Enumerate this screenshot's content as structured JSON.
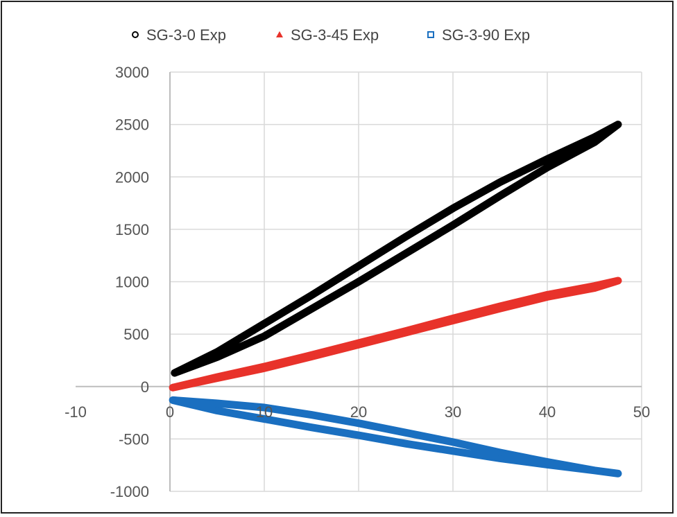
{
  "chart_data": {
    "type": "scatter",
    "title": "",
    "xlabel": "",
    "ylabel": "",
    "xlim": [
      -10,
      50
    ],
    "ylim": [
      -1000,
      3000
    ],
    "x_ticks": [
      -10,
      0,
      10,
      20,
      30,
      40,
      50
    ],
    "y_ticks": [
      -1000,
      -500,
      0,
      500,
      1000,
      1500,
      2000,
      2500,
      3000
    ],
    "grid": true,
    "legend_position": "top",
    "series": [
      {
        "name": "SG-3-0 Exp",
        "color": "#000000",
        "marker": "circle",
        "loading_points": [
          [
            0.5,
            130
          ],
          [
            5,
            330
          ],
          [
            10,
            600
          ],
          [
            15,
            870
          ],
          [
            20,
            1150
          ],
          [
            25,
            1430
          ],
          [
            30,
            1700
          ],
          [
            35,
            1950
          ],
          [
            40,
            2170
          ],
          [
            45,
            2380
          ],
          [
            47.5,
            2500
          ]
        ],
        "unloading_points": [
          [
            47.5,
            2500
          ],
          [
            45,
            2330
          ],
          [
            40,
            2090
          ],
          [
            35,
            1820
          ],
          [
            30,
            1540
          ],
          [
            25,
            1270
          ],
          [
            20,
            1000
          ],
          [
            15,
            740
          ],
          [
            10,
            480
          ],
          [
            5,
            280
          ],
          [
            0.5,
            130
          ]
        ]
      },
      {
        "name": "SG-3-45 Exp",
        "color": "#e8322a",
        "marker": "triangle",
        "loading_points": [
          [
            0.3,
            -10
          ],
          [
            5,
            90
          ],
          [
            10,
            190
          ],
          [
            15,
            300
          ],
          [
            20,
            415
          ],
          [
            25,
            530
          ],
          [
            30,
            650
          ],
          [
            35,
            765
          ],
          [
            40,
            875
          ],
          [
            45,
            960
          ],
          [
            47.5,
            1010
          ]
        ],
        "unloading_points": [
          [
            47.5,
            1000
          ],
          [
            45,
            940
          ],
          [
            40,
            855
          ],
          [
            35,
            745
          ],
          [
            30,
            630
          ],
          [
            25,
            515
          ],
          [
            20,
            400
          ],
          [
            15,
            285
          ],
          [
            10,
            175
          ],
          [
            5,
            80
          ],
          [
            0.3,
            -10
          ]
        ]
      },
      {
        "name": "SG-3-90 Exp",
        "color": "#1a6fc0",
        "marker": "square",
        "loading_points": [
          [
            0.3,
            -130
          ],
          [
            5,
            -230
          ],
          [
            10,
            -310
          ],
          [
            15,
            -390
          ],
          [
            20,
            -465
          ],
          [
            25,
            -545
          ],
          [
            30,
            -615
          ],
          [
            35,
            -685
          ],
          [
            40,
            -745
          ],
          [
            45,
            -800
          ],
          [
            47.5,
            -830
          ]
        ],
        "unloading_points": [
          [
            47.5,
            -820
          ],
          [
            45,
            -800
          ],
          [
            40,
            -720
          ],
          [
            35,
            -630
          ],
          [
            30,
            -530
          ],
          [
            25,
            -440
          ],
          [
            20,
            -350
          ],
          [
            15,
            -270
          ],
          [
            10,
            -200
          ],
          [
            5,
            -160
          ],
          [
            0.3,
            -130
          ]
        ]
      }
    ]
  }
}
